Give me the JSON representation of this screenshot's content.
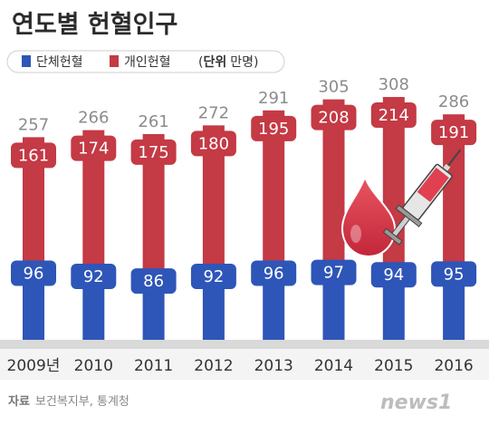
{
  "chart_data": {
    "type": "bar",
    "stacked": true,
    "title": "연도별 헌혈인구",
    "categories": [
      "2009년",
      "2010",
      "2011",
      "2012",
      "2013",
      "2014",
      "2015",
      "2016"
    ],
    "series": [
      {
        "name": "단체헌혈",
        "color": "#2e55b8",
        "values": [
          96,
          92,
          86,
          92,
          96,
          97,
          94,
          95
        ]
      },
      {
        "name": "개인헌혈",
        "color": "#c43a45",
        "values": [
          161,
          174,
          175,
          180,
          195,
          208,
          214,
          191
        ]
      }
    ],
    "totals": [
      257,
      266,
      261,
      272,
      291,
      305,
      308,
      286
    ],
    "unit_label_bold": "단위",
    "unit_label": "만명",
    "source_label": "자료",
    "source_text": "보건복지부, 통계청",
    "logo": "news1"
  }
}
